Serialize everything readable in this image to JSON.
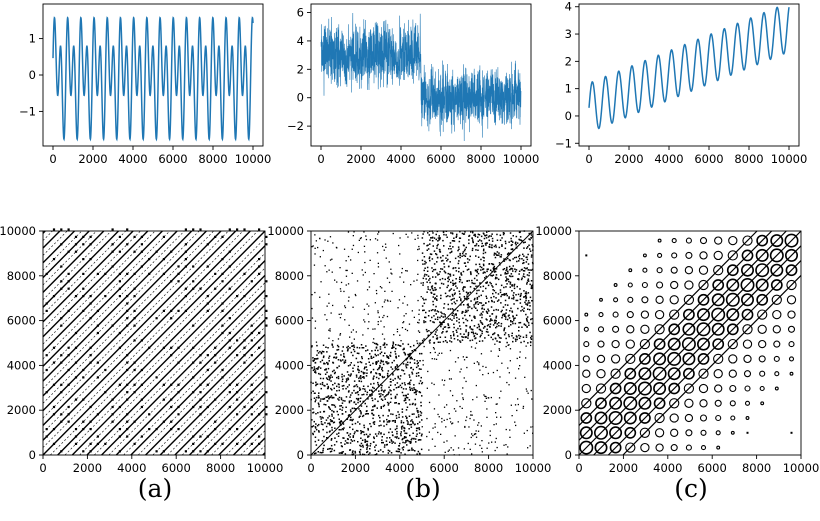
{
  "captions": [
    "(a)",
    "(b)",
    "(c)"
  ],
  "colors": {
    "line": "#1f77b4",
    "axes": "#000000",
    "recurrence_point": "#000000"
  },
  "chart_data": [
    {
      "type": "line",
      "x": {
        "min": 0,
        "max": 10000,
        "ticks": [
          0,
          2000,
          4000,
          6000,
          8000,
          10000
        ]
      },
      "xlim": [
        -500,
        10500
      ],
      "ylim": [
        -1.95,
        1.95
      ],
      "yticks": [
        -1,
        0,
        1
      ],
      "series": [
        {
          "kind": "harmonic",
          "period": 660,
          "harmonic_amp": 1.5,
          "base_amp": 1.0
        }
      ],
      "grid": false
    },
    {
      "type": "line",
      "x": {
        "min": 0,
        "max": 10000,
        "ticks": [
          0,
          2000,
          4000,
          6000,
          8000,
          10000
        ]
      },
      "xlim": [
        -500,
        10500
      ],
      "ylim": [
        -3.4,
        6.6
      ],
      "yticks": [
        -2,
        0,
        2,
        4,
        6
      ],
      "series": [
        {
          "kind": "noisy_step",
          "segments": [
            {
              "from": 0,
              "to": 5000,
              "mean": 3.0,
              "spread": 1.3
            },
            {
              "from": 5000,
              "to": 10000,
              "mean": 0.0,
              "spread": 1.3
            }
          ]
        }
      ],
      "grid": false
    },
    {
      "type": "line",
      "x": {
        "min": 0,
        "max": 10000,
        "ticks": [
          0,
          2000,
          4000,
          6000,
          8000,
          10000
        ]
      },
      "xlim": [
        -500,
        10500
      ],
      "ylim": [
        -1.1,
        4.1
      ],
      "yticks": [
        -1,
        0,
        1,
        2,
        3,
        4
      ],
      "series": [
        {
          "kind": "sine_trend",
          "period": 660,
          "amp": 0.9,
          "slope_per_10000": 2.95
        }
      ],
      "grid": false
    },
    {
      "type": "scatter",
      "subtype": "recurrence_plot",
      "x": {
        "min": 0,
        "max": 10000,
        "ticks": [
          0,
          2000,
          4000,
          6000,
          8000,
          10000
        ]
      },
      "y": {
        "min": 0,
        "max": 10000,
        "ticks": [
          0,
          2000,
          4000,
          6000,
          8000,
          10000
        ]
      },
      "pattern": "periodic_diagonal_lattice"
    },
    {
      "type": "scatter",
      "subtype": "recurrence_plot",
      "x": {
        "min": 0,
        "max": 10000,
        "ticks": [
          0,
          2000,
          4000,
          6000,
          8000,
          10000
        ]
      },
      "y": {
        "min": 0,
        "max": 10000,
        "ticks": [
          0,
          2000,
          4000,
          6000,
          8000,
          10000
        ]
      },
      "pattern": "two_block_noise"
    },
    {
      "type": "scatter",
      "subtype": "recurrence_plot",
      "x": {
        "min": 0,
        "max": 10000,
        "ticks": [
          0,
          2000,
          4000,
          6000,
          8000,
          10000
        ]
      },
      "y": {
        "min": 0,
        "max": 10000,
        "ticks": [
          0,
          2000,
          4000,
          6000,
          8000,
          10000
        ]
      },
      "pattern": "trend_circles"
    }
  ]
}
